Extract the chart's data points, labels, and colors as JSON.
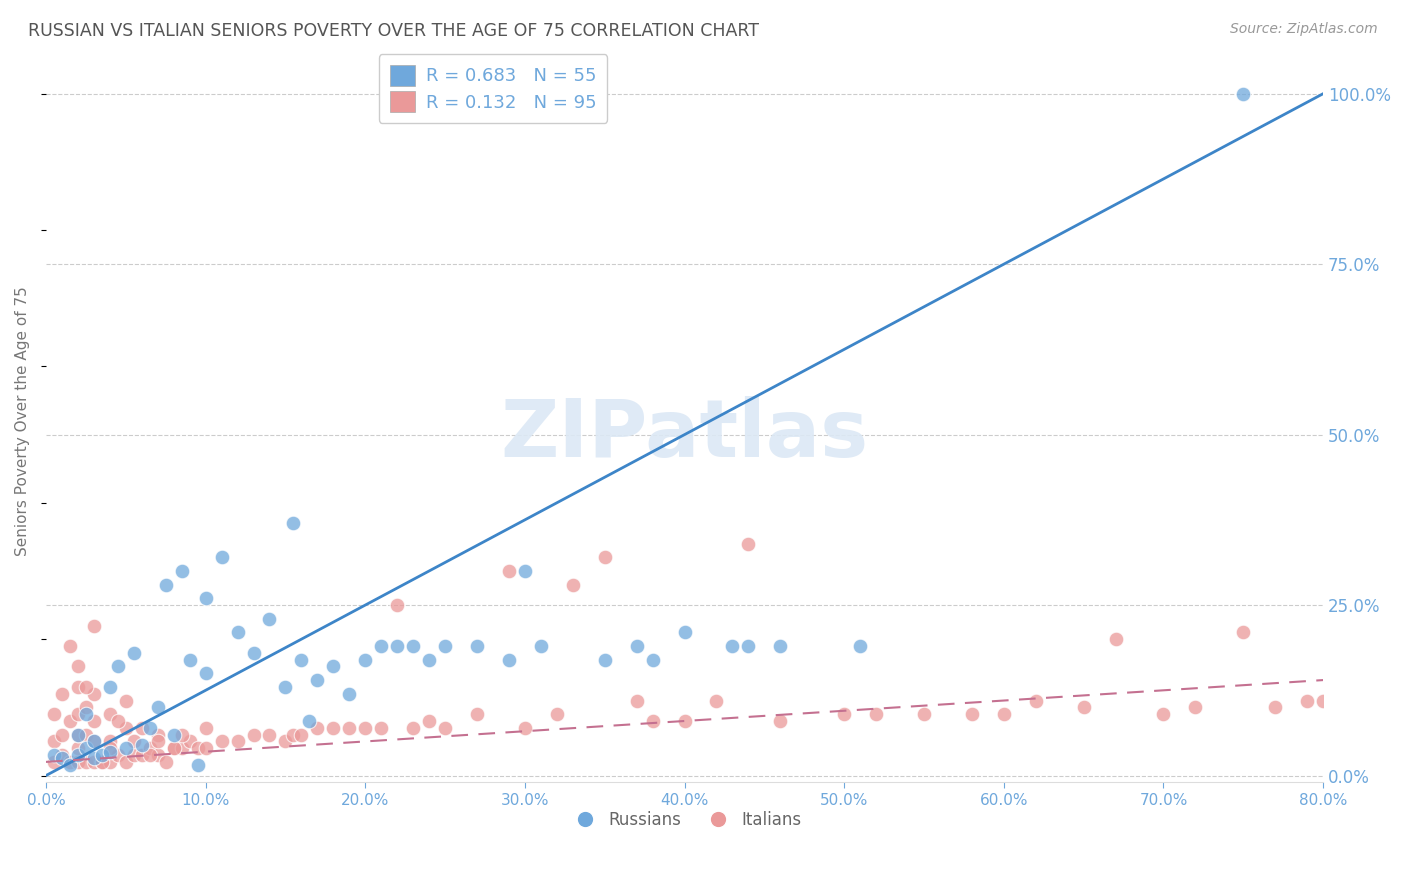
{
  "title": "RUSSIAN VS ITALIAN SENIORS POVERTY OVER THE AGE OF 75 CORRELATION CHART",
  "source": "Source: ZipAtlas.com",
  "ylabel": "Seniors Poverty Over the Age of 75",
  "xlim": [
    0.0,
    0.8
  ],
  "ylim": [
    -0.01,
    1.05
  ],
  "russian_R": 0.683,
  "russian_N": 55,
  "italian_R": 0.132,
  "italian_N": 95,
  "russian_color": "#6fa8dc",
  "italian_color": "#ea9999",
  "russian_line_color": "#3d85c8",
  "italian_line_color": "#c47090",
  "watermark_color": "#dce8f5",
  "background_color": "#ffffff",
  "grid_color": "#cccccc",
  "axis_color": "#6fa8dc",
  "title_color": "#555555",
  "russian_line_x": [
    0.0,
    0.8
  ],
  "russian_line_y": [
    0.0,
    1.0
  ],
  "italian_line_x": [
    0.0,
    0.8
  ],
  "italian_line_y": [
    0.02,
    0.14
  ],
  "russian_x": [
    0.005,
    0.01,
    0.015,
    0.02,
    0.02,
    0.025,
    0.025,
    0.03,
    0.03,
    0.035,
    0.04,
    0.04,
    0.045,
    0.05,
    0.055,
    0.06,
    0.065,
    0.07,
    0.075,
    0.08,
    0.085,
    0.09,
    0.095,
    0.1,
    0.1,
    0.11,
    0.12,
    0.13,
    0.14,
    0.15,
    0.155,
    0.16,
    0.165,
    0.17,
    0.18,
    0.19,
    0.2,
    0.21,
    0.22,
    0.23,
    0.24,
    0.25,
    0.27,
    0.29,
    0.3,
    0.31,
    0.35,
    0.37,
    0.38,
    0.4,
    0.43,
    0.44,
    0.46,
    0.51,
    0.75
  ],
  "russian_y": [
    0.03,
    0.025,
    0.015,
    0.03,
    0.06,
    0.04,
    0.09,
    0.025,
    0.05,
    0.03,
    0.035,
    0.13,
    0.16,
    0.04,
    0.18,
    0.045,
    0.07,
    0.1,
    0.28,
    0.06,
    0.3,
    0.17,
    0.015,
    0.15,
    0.26,
    0.32,
    0.21,
    0.18,
    0.23,
    0.13,
    0.37,
    0.17,
    0.08,
    0.14,
    0.16,
    0.12,
    0.17,
    0.19,
    0.19,
    0.19,
    0.17,
    0.19,
    0.19,
    0.17,
    0.3,
    0.19,
    0.17,
    0.19,
    0.17,
    0.21,
    0.19,
    0.19,
    0.19,
    0.19,
    1.0
  ],
  "italian_x": [
    0.005,
    0.005,
    0.005,
    0.01,
    0.01,
    0.01,
    0.015,
    0.015,
    0.02,
    0.02,
    0.02,
    0.02,
    0.02,
    0.025,
    0.025,
    0.025,
    0.03,
    0.03,
    0.03,
    0.03,
    0.035,
    0.04,
    0.04,
    0.04,
    0.045,
    0.05,
    0.05,
    0.055,
    0.06,
    0.065,
    0.07,
    0.07,
    0.08,
    0.085,
    0.09,
    0.095,
    0.1,
    0.1,
    0.11,
    0.12,
    0.13,
    0.14,
    0.15,
    0.155,
    0.16,
    0.17,
    0.18,
    0.19,
    0.2,
    0.21,
    0.22,
    0.23,
    0.24,
    0.25,
    0.27,
    0.29,
    0.3,
    0.32,
    0.33,
    0.35,
    0.37,
    0.38,
    0.4,
    0.42,
    0.44,
    0.46,
    0.5,
    0.52,
    0.55,
    0.58,
    0.6,
    0.62,
    0.65,
    0.67,
    0.7,
    0.72,
    0.75,
    0.77,
    0.79,
    0.8,
    0.015,
    0.02,
    0.025,
    0.03,
    0.035,
    0.04,
    0.045,
    0.05,
    0.055,
    0.06,
    0.065,
    0.07,
    0.075,
    0.08,
    0.085
  ],
  "italian_y": [
    0.02,
    0.05,
    0.09,
    0.03,
    0.06,
    0.12,
    0.02,
    0.08,
    0.02,
    0.04,
    0.06,
    0.09,
    0.13,
    0.02,
    0.06,
    0.1,
    0.02,
    0.05,
    0.08,
    0.12,
    0.02,
    0.02,
    0.05,
    0.09,
    0.03,
    0.02,
    0.07,
    0.03,
    0.03,
    0.04,
    0.03,
    0.06,
    0.04,
    0.04,
    0.05,
    0.04,
    0.04,
    0.07,
    0.05,
    0.05,
    0.06,
    0.06,
    0.05,
    0.06,
    0.06,
    0.07,
    0.07,
    0.07,
    0.07,
    0.07,
    0.25,
    0.07,
    0.08,
    0.07,
    0.09,
    0.3,
    0.07,
    0.09,
    0.28,
    0.32,
    0.11,
    0.08,
    0.08,
    0.11,
    0.34,
    0.08,
    0.09,
    0.09,
    0.09,
    0.09,
    0.09,
    0.11,
    0.1,
    0.2,
    0.09,
    0.1,
    0.21,
    0.1,
    0.11,
    0.11,
    0.19,
    0.16,
    0.13,
    0.22,
    0.02,
    0.04,
    0.08,
    0.11,
    0.05,
    0.07,
    0.03,
    0.05,
    0.02,
    0.04,
    0.06
  ]
}
